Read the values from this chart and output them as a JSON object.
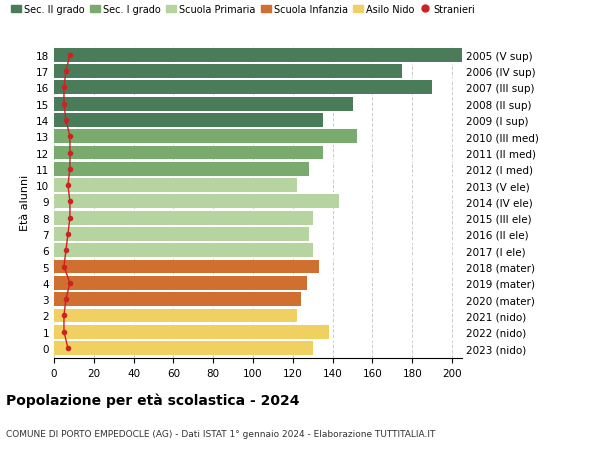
{
  "ages": [
    18,
    17,
    16,
    15,
    14,
    13,
    12,
    11,
    10,
    9,
    8,
    7,
    6,
    5,
    4,
    3,
    2,
    1,
    0
  ],
  "values": [
    205,
    175,
    190,
    150,
    135,
    152,
    135,
    128,
    122,
    143,
    130,
    128,
    130,
    133,
    127,
    124,
    122,
    138,
    130
  ],
  "stranieri": [
    8,
    6,
    5,
    5,
    6,
    8,
    8,
    8,
    7,
    8,
    8,
    7,
    6,
    5,
    8,
    6,
    5,
    5,
    7
  ],
  "right_labels": [
    "2005 (V sup)",
    "2006 (IV sup)",
    "2007 (III sup)",
    "2008 (II sup)",
    "2009 (I sup)",
    "2010 (III med)",
    "2011 (II med)",
    "2012 (I med)",
    "2013 (V ele)",
    "2014 (IV ele)",
    "2015 (III ele)",
    "2016 (II ele)",
    "2017 (I ele)",
    "2018 (mater)",
    "2019 (mater)",
    "2020 (mater)",
    "2021 (nido)",
    "2022 (nido)",
    "2023 (nido)"
  ],
  "bar_colors": [
    "#4a7c59",
    "#4a7c59",
    "#4a7c59",
    "#4a7c59",
    "#4a7c59",
    "#7aab6e",
    "#7aab6e",
    "#7aab6e",
    "#b5d4a0",
    "#b5d4a0",
    "#b5d4a0",
    "#b5d4a0",
    "#b5d4a0",
    "#d07030",
    "#d07030",
    "#d07030",
    "#f0d060",
    "#f0d060",
    "#f0d060"
  ],
  "legend_labels": [
    "Sec. II grado",
    "Sec. I grado",
    "Scuola Primaria",
    "Scuola Infanzia",
    "Asilo Nido",
    "Stranieri"
  ],
  "legend_colors": [
    "#4a7c59",
    "#7aab6e",
    "#b5d4a0",
    "#d07030",
    "#f0d060",
    "#cc2222"
  ],
  "ylabel_left": "Età alunni",
  "title": "Popolazione per età scolastica - 2024",
  "subtitle": "COMUNE DI PORTO EMPEDOCLE (AG) - Dati ISTAT 1° gennaio 2024 - Elaborazione TUTTITALIA.IT",
  "xticks": [
    0,
    20,
    40,
    60,
    80,
    100,
    120,
    140,
    160,
    180,
    200
  ],
  "stranieri_color": "#cc2222",
  "background_color": "#ffffff",
  "grid_color": "#cccccc"
}
